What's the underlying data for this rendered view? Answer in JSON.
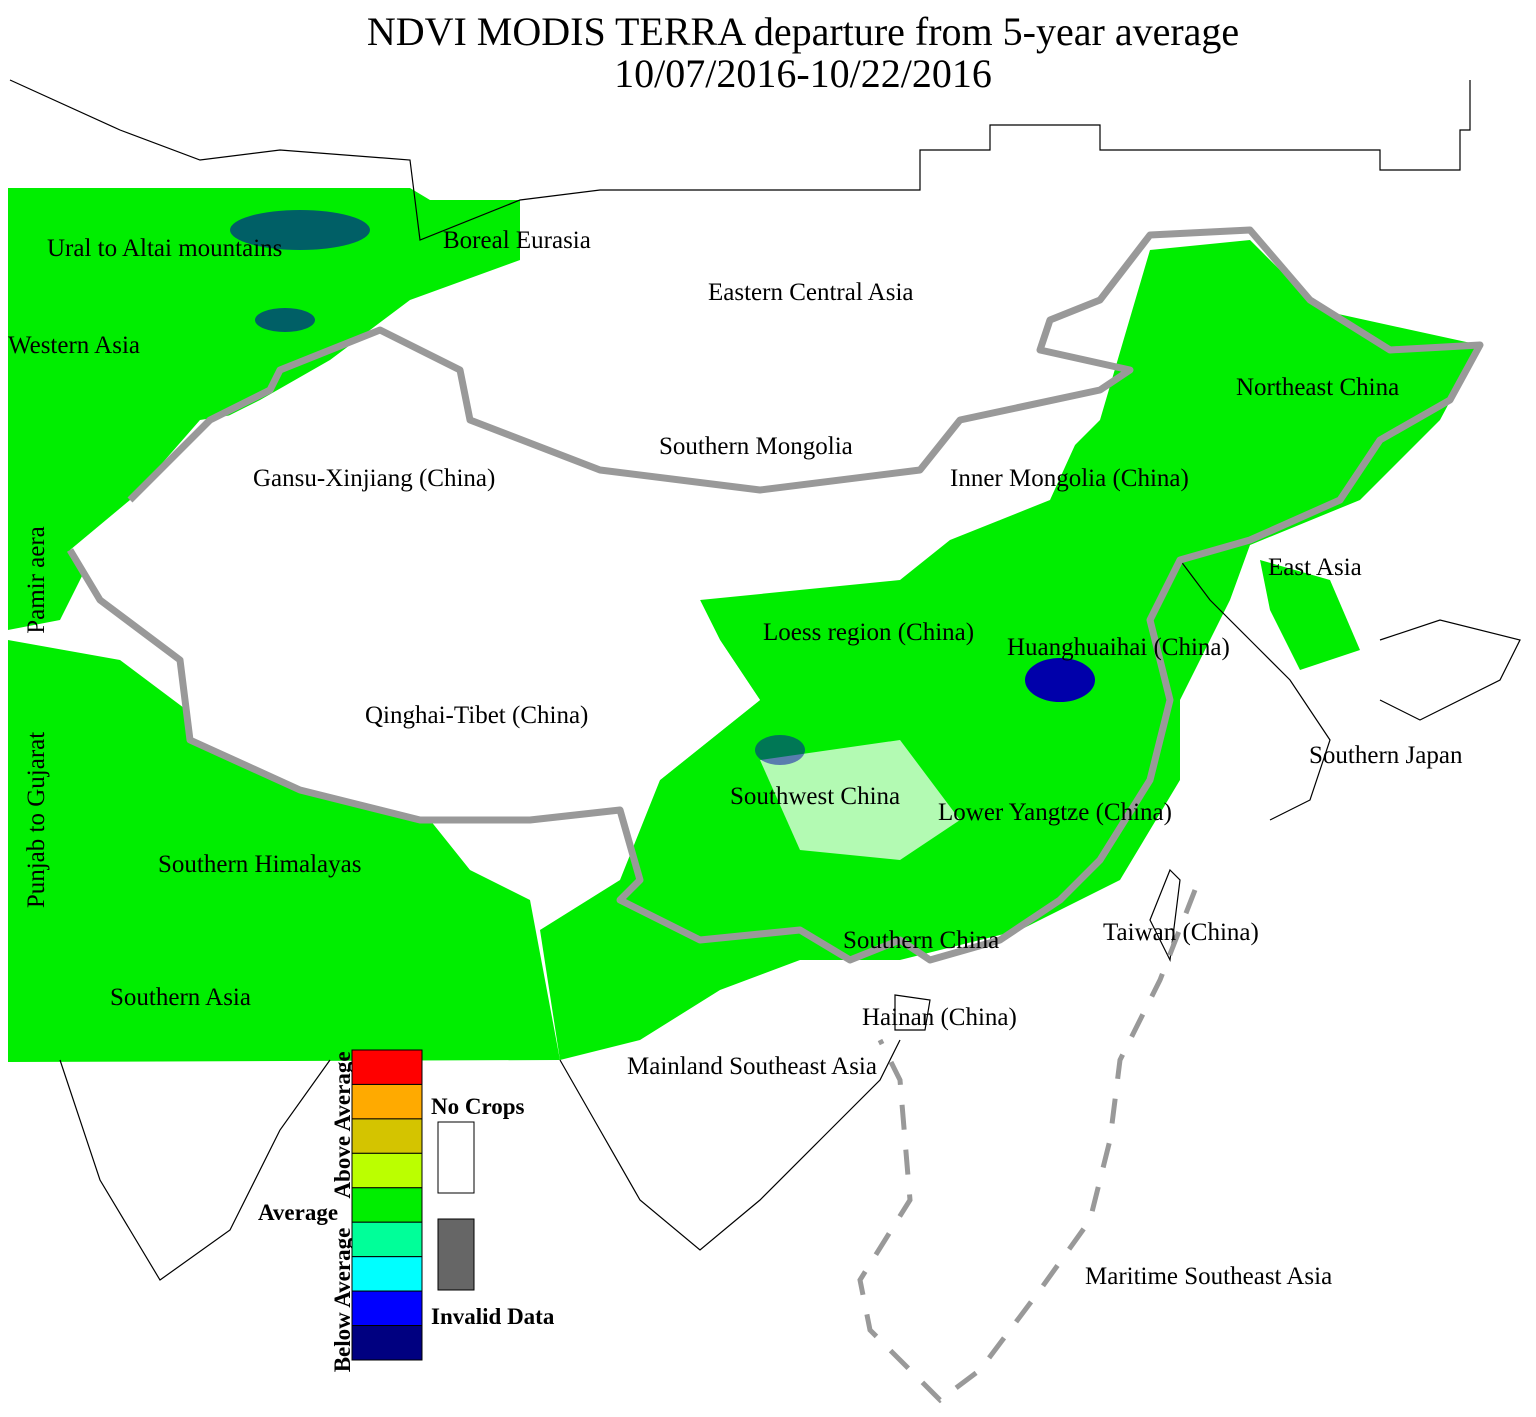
{
  "title": [
    "NDVI MODIS TERRA departure from 5-year average",
    "10/07/2016-10/22/2016"
  ],
  "regions": [
    "Ural to Altai mountains",
    "Boreal Eurasia",
    "Eastern Central Asia",
    "Western Asia",
    "Northeast China",
    "Southern Mongolia",
    "Gansu-Xinjiang (China)",
    "Inner Mongolia (China)",
    "Pamir aera",
    "East Asia",
    "Loess region (China)",
    "Huanghuaihai (China)",
    "Qinghai-Tibet (China)",
    "Southern Japan",
    "Punjab to Gujarat",
    "Southwest China",
    "Lower Yangtze (China)",
    "Southern Himalayas",
    "Taiwan (China)",
    "Southern China",
    "Southern Asia",
    "Hainan (China)",
    "Mainland Southeast Asia",
    "Maritime Southeast Asia"
  ],
  "legend": {
    "above": "Above Average",
    "average": "Average",
    "below": "Below Average",
    "no_crops": "No Crops",
    "invalid": "Invalid Data",
    "colors": [
      "#ff0000",
      "#ffaa00",
      "#d4c400",
      "#bbff00",
      "#00ee00",
      "#00ff99",
      "#00ffff",
      "#0000ff",
      "#000080"
    ],
    "no_crops_color": "#ffffff",
    "invalid_color": "#666666"
  }
}
